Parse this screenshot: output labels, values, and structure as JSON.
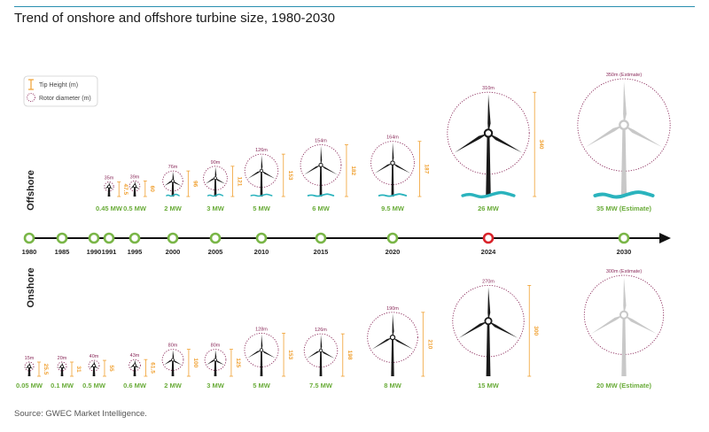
{
  "title": "Trend of onshore and offshore turbine size, 1980-2030",
  "source": "Source: GWEC Market Intelligence.",
  "legend": {
    "tip_height": "Tip Height (m)",
    "rotor_diameter": "Rotor diameter (m)"
  },
  "rows": {
    "offshore": "Offshore",
    "onshore": "Onshore"
  },
  "colors": {
    "axis": "#111111",
    "milestone": "#7ab648",
    "milestone_highlight": "#d9242b",
    "rotor_circle": "#8a2a5a",
    "tip_height": "#f0a030",
    "capacity_label": "#6aac3a",
    "water": "#2ab3bd",
    "estimate_turbine": "#c8c8c8"
  },
  "timeline": [
    {
      "year": "1980",
      "highlight": false
    },
    {
      "year": "1985",
      "highlight": false
    },
    {
      "year": "1990",
      "highlight": false
    },
    {
      "year": "1991",
      "highlight": false
    },
    {
      "year": "1995",
      "highlight": false
    },
    {
      "year": "2000",
      "highlight": false
    },
    {
      "year": "2005",
      "highlight": false
    },
    {
      "year": "2010",
      "highlight": false
    },
    {
      "year": "2015",
      "highlight": false
    },
    {
      "year": "2020",
      "highlight": false
    },
    {
      "year": "2024",
      "highlight": true
    },
    {
      "year": "2030",
      "highlight": false
    }
  ],
  "offshore": [
    {
      "year": "1991",
      "capacity": "0.45 MW",
      "rotor": "35m",
      "tip": "47.5",
      "estimate": false
    },
    {
      "year": "1995",
      "capacity": "0.5 MW",
      "rotor": "39m",
      "tip": "60",
      "estimate": false
    },
    {
      "year": "2000",
      "capacity": "2 MW",
      "rotor": "76m",
      "tip": "96",
      "estimate": false
    },
    {
      "year": "2005",
      "capacity": "3 MW",
      "rotor": "90m",
      "tip": "121",
      "estimate": false
    },
    {
      "year": "2010",
      "capacity": "5 MW",
      "rotor": "126m",
      "tip": "153",
      "estimate": false
    },
    {
      "year": "2015",
      "capacity": "6 MW",
      "rotor": "154m",
      "tip": "182",
      "estimate": false
    },
    {
      "year": "2020",
      "capacity": "9.5 MW",
      "rotor": "164m",
      "tip": "187",
      "estimate": false
    },
    {
      "year": "2024",
      "capacity": "26 MW",
      "rotor": "310m",
      "tip": "340",
      "estimate": false
    },
    {
      "year": "2030",
      "capacity": "35 MW (Estimate)",
      "rotor": "350m (Estimate)",
      "tip": "",
      "estimate": true
    }
  ],
  "onshore": [
    {
      "year": "1980",
      "capacity": "0.05 MW",
      "rotor": "15m",
      "tip": "25.5",
      "estimate": false
    },
    {
      "year": "1985",
      "capacity": "0.1 MW",
      "rotor": "20m",
      "tip": "31",
      "estimate": false
    },
    {
      "year": "1990",
      "capacity": "0.5 MW",
      "rotor": "40m",
      "tip": "55",
      "estimate": false
    },
    {
      "year": "1995",
      "capacity": "0.6 MW",
      "rotor": "43m",
      "tip": "61.5",
      "estimate": false
    },
    {
      "year": "2000",
      "capacity": "2 MW",
      "rotor": "80m",
      "tip": "100",
      "estimate": false
    },
    {
      "year": "2005",
      "capacity": "3 MW",
      "rotor": "80m",
      "tip": "125",
      "estimate": false
    },
    {
      "year": "2010",
      "capacity": "5 MW",
      "rotor": "128m",
      "tip": "153",
      "estimate": false
    },
    {
      "year": "2015",
      "capacity": "7.5 MW",
      "rotor": "126m",
      "tip": "198",
      "estimate": false
    },
    {
      "year": "2020",
      "capacity": "8 MW",
      "rotor": "190m",
      "tip": "210",
      "estimate": false
    },
    {
      "year": "2024",
      "capacity": "15 MW",
      "rotor": "270m",
      "tip": "300",
      "estimate": false
    },
    {
      "year": "2030",
      "capacity": "20 MW (Estimate)",
      "rotor": "300m (Estimate)",
      "tip": "",
      "estimate": true
    }
  ]
}
